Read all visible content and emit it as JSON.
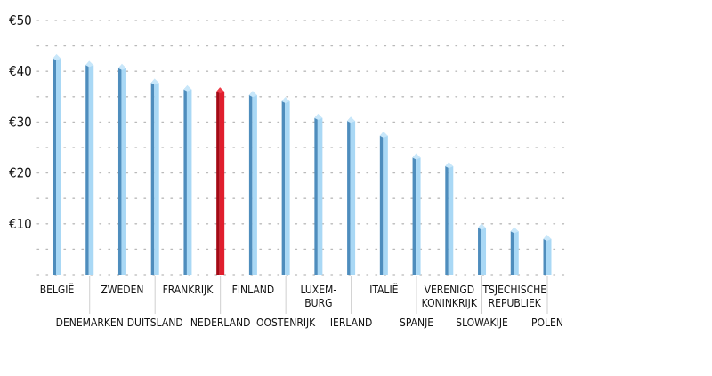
{
  "chart_data": {
    "type": "bar",
    "title": "",
    "xlabel": "",
    "ylabel": "",
    "ylim": [
      0,
      50
    ],
    "y_ticks": [
      "€10",
      "€20",
      "€30",
      "€40",
      "€50"
    ],
    "y_tick_values": [
      10,
      20,
      30,
      40,
      50
    ],
    "grid": true,
    "categories": [
      {
        "lines": [
          "BELGIË"
        ],
        "row": "upper",
        "highlight": false
      },
      {
        "lines": [
          "DENEMARKEN"
        ],
        "row": "lower",
        "highlight": false
      },
      {
        "lines": [
          "ZWEDEN"
        ],
        "row": "upper",
        "highlight": false
      },
      {
        "lines": [
          "DUITSLAND"
        ],
        "row": "lower",
        "highlight": false
      },
      {
        "lines": [
          "FRANKRIJK"
        ],
        "row": "upper",
        "highlight": false
      },
      {
        "lines": [
          "NEDERLAND"
        ],
        "row": "lower",
        "highlight": true
      },
      {
        "lines": [
          "FINLAND"
        ],
        "row": "upper",
        "highlight": false
      },
      {
        "lines": [
          "OOSTENRIJK"
        ],
        "row": "lower",
        "highlight": false
      },
      {
        "lines": [
          "LUXEM-",
          "BURG"
        ],
        "row": "upper",
        "highlight": false
      },
      {
        "lines": [
          "IERLAND"
        ],
        "row": "lower",
        "highlight": false
      },
      {
        "lines": [
          "ITALIË"
        ],
        "row": "upper",
        "highlight": false
      },
      {
        "lines": [
          "SPANJE"
        ],
        "row": "lower",
        "highlight": false
      },
      {
        "lines": [
          "VERENIGD",
          "KONINKRIJK"
        ],
        "row": "upper",
        "highlight": false
      },
      {
        "lines": [
          "SLOWAKIJE"
        ],
        "row": "lower",
        "highlight": false
      },
      {
        "lines": [
          "TSJECHISCHE",
          "REPUBLIEK"
        ],
        "row": "upper",
        "highlight": false
      },
      {
        "lines": [
          "POLEN"
        ],
        "row": "lower",
        "highlight": false
      }
    ],
    "values": [
      42.5,
      41.2,
      40.6,
      37.7,
      36.4,
      36.0,
      35.3,
      34.1,
      30.8,
      30.2,
      27.3,
      23.0,
      21.3,
      9.2,
      8.5,
      7.0
    ]
  },
  "colors": {
    "bar_light": "#a9d8f5",
    "bar_dark": "#4e8dbd",
    "bar_top": "#c8e7fa",
    "highlight_light": "#e01e2d",
    "highlight_dark": "#a40a16",
    "highlight_top": "#ef3d4a",
    "highlight_text": "#d2121f",
    "text": "#111111",
    "grid": "#b9b9b9"
  }
}
